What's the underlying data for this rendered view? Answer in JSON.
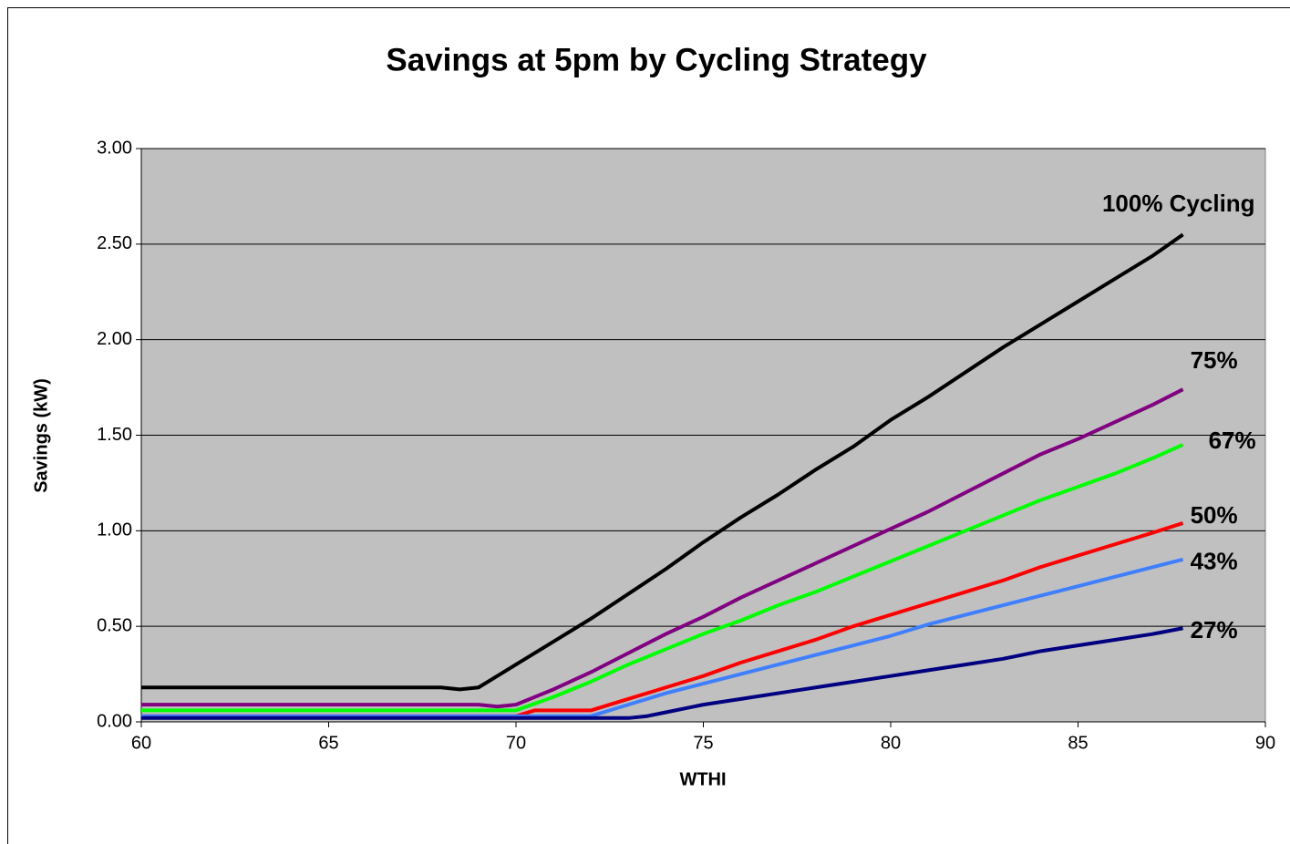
{
  "chart_data": {
    "type": "line",
    "title": "Savings at 5pm by Cycling Strategy",
    "x_label": "WTHI",
    "y_label": "Savings (kW)",
    "xlim": [
      60,
      90
    ],
    "xticks": [
      60,
      65,
      70,
      75,
      80,
      85,
      90
    ],
    "ylim": [
      0,
      3
    ],
    "yticks": [
      {
        "value": 0,
        "label": "0.00"
      },
      {
        "value": 0.5,
        "label": "0.50"
      },
      {
        "value": 1,
        "label": "1.00"
      },
      {
        "value": 1.5,
        "label": "1.50"
      },
      {
        "value": 2,
        "label": "2.00"
      },
      {
        "value": 2.5,
        "label": "2.50"
      },
      {
        "value": 3,
        "label": "3.00"
      }
    ],
    "grid": true,
    "series": [
      {
        "name": "100% Cycling",
        "color": "#000000",
        "x": [
          60,
          68,
          68.5,
          69,
          69.5,
          70,
          71,
          72,
          73,
          74,
          75,
          76,
          77,
          78,
          79,
          80,
          81,
          82,
          83,
          84,
          85,
          86,
          87,
          87.8
        ],
        "values": [
          0.18,
          0.18,
          0.17,
          0.18,
          0.24,
          0.3,
          0.42,
          0.54,
          0.67,
          0.8,
          0.94,
          1.07,
          1.19,
          1.32,
          1.44,
          1.58,
          1.7,
          1.83,
          1.96,
          2.08,
          2.2,
          2.32,
          2.44,
          2.55
        ]
      },
      {
        "name": "75%",
        "color": "#800080",
        "x": [
          60,
          69,
          69.5,
          70,
          71,
          72,
          73,
          74,
          75,
          76,
          77,
          78,
          79,
          80,
          81,
          82,
          83,
          84,
          85,
          86,
          87,
          87.8
        ],
        "values": [
          0.09,
          0.09,
          0.08,
          0.09,
          0.17,
          0.26,
          0.36,
          0.46,
          0.55,
          0.65,
          0.74,
          0.83,
          0.92,
          1.01,
          1.1,
          1.2,
          1.3,
          1.4,
          1.48,
          1.57,
          1.66,
          1.74
        ]
      },
      {
        "name": "67%",
        "color": "#00ff00",
        "x": [
          60,
          70,
          71,
          72,
          73,
          74,
          75,
          76,
          77,
          78,
          79,
          80,
          81,
          82,
          83,
          84,
          85,
          86,
          87,
          87.8
        ],
        "values": [
          0.06,
          0.06,
          0.13,
          0.21,
          0.3,
          0.38,
          0.46,
          0.53,
          0.61,
          0.68,
          0.76,
          0.84,
          0.92,
          1.0,
          1.08,
          1.16,
          1.23,
          1.3,
          1.38,
          1.45
        ]
      },
      {
        "name": "50%",
        "color": "#ff0000",
        "x": [
          60,
          70,
          70.5,
          72,
          73,
          74,
          75,
          76,
          77,
          78,
          79,
          80,
          81,
          82,
          83,
          84,
          85,
          86,
          87,
          87.8
        ],
        "values": [
          0.03,
          0.03,
          0.06,
          0.06,
          0.12,
          0.18,
          0.24,
          0.31,
          0.37,
          0.43,
          0.5,
          0.56,
          0.62,
          0.68,
          0.74,
          0.81,
          0.87,
          0.93,
          0.99,
          1.04
        ]
      },
      {
        "name": "43%",
        "color": "#3f7fff",
        "x": [
          60,
          72,
          73,
          74,
          75,
          76,
          77,
          78,
          79,
          80,
          81,
          82,
          83,
          84,
          85,
          86,
          87,
          87.8
        ],
        "values": [
          0.03,
          0.03,
          0.09,
          0.15,
          0.2,
          0.25,
          0.3,
          0.35,
          0.4,
          0.45,
          0.51,
          0.56,
          0.61,
          0.66,
          0.71,
          0.76,
          0.81,
          0.85
        ]
      },
      {
        "name": "27%",
        "color": "#000080",
        "x": [
          60,
          73,
          73.5,
          74,
          75,
          76,
          77,
          78,
          79,
          80,
          81,
          82,
          83,
          84,
          85,
          86,
          87,
          87.8
        ],
        "values": [
          0.02,
          0.02,
          0.03,
          0.05,
          0.09,
          0.12,
          0.15,
          0.18,
          0.21,
          0.24,
          0.27,
          0.3,
          0.33,
          0.37,
          0.4,
          0.43,
          0.46,
          0.49
        ]
      }
    ]
  }
}
